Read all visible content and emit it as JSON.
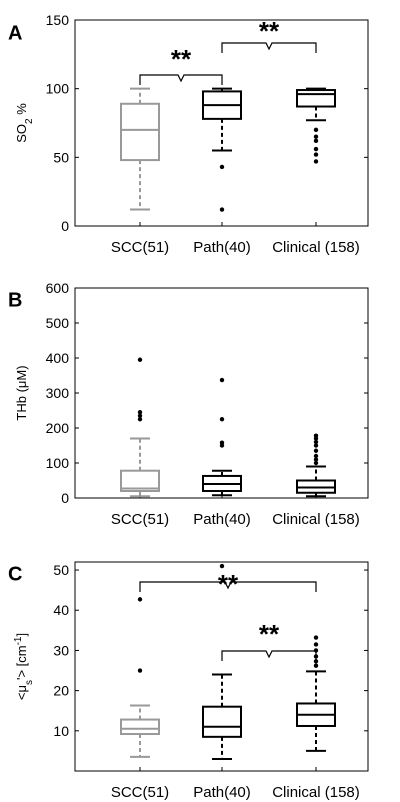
{
  "chart_data": [
    {
      "type": "box",
      "panel": "A",
      "ylabel_parts": [
        "SO",
        "2",
        " %"
      ],
      "ylim": [
        0,
        150
      ],
      "yticks": [
        0,
        50,
        100,
        150
      ],
      "categories": [
        "SCC(51)",
        "Path(40)",
        "Clinical (158)"
      ],
      "boxes": [
        {
          "category": "SCC(51)",
          "min": 12,
          "q1": 48,
          "median": 70,
          "q3": 89,
          "max": 100,
          "outliers": [],
          "color": "#999999"
        },
        {
          "category": "Path(40)",
          "min": 55,
          "q1": 78,
          "median": 88,
          "q3": 98,
          "max": 100,
          "outliers": [
            43,
            12
          ],
          "color": "#000000"
        },
        {
          "category": "Clinical (158)",
          "min": 77,
          "q1": 87,
          "median": 96,
          "q3": 99,
          "max": 100,
          "outliers": [
            70,
            65,
            62,
            56,
            52,
            47
          ],
          "color": "#000000"
        }
      ],
      "significance": [
        {
          "from": 1,
          "to": 2,
          "label": "**"
        },
        {
          "from": 2,
          "to": 3,
          "label": "**"
        },
        {
          "from": 1,
          "to": 3,
          "label": "**"
        }
      ]
    },
    {
      "type": "box",
      "panel": "B",
      "ylabel_parts": [
        "THb (",
        "μ",
        "M)"
      ],
      "ylim": [
        0,
        600
      ],
      "yticks": [
        0,
        100,
        200,
        300,
        400,
        500,
        600
      ],
      "categories": [
        "SCC(51)",
        "Path(40)",
        "Clinical (158)"
      ],
      "boxes": [
        {
          "category": "SCC(51)",
          "min": 5,
          "q1": 20,
          "median": 27,
          "q3": 78,
          "max": 170,
          "outliers": [
            395,
            245,
            235,
            225
          ],
          "color": "#999999"
        },
        {
          "category": "Path(40)",
          "min": 8,
          "q1": 20,
          "median": 40,
          "q3": 63,
          "max": 78,
          "outliers": [
            337,
            225,
            158,
            150
          ],
          "color": "#000000"
        },
        {
          "category": "Clinical (158)",
          "min": 5,
          "q1": 15,
          "median": 30,
          "q3": 50,
          "max": 90,
          "outliers": [
            178,
            170,
            160,
            150,
            135,
            120,
            110,
            100
          ],
          "color": "#000000"
        }
      ],
      "significance": []
    },
    {
      "type": "box",
      "panel": "C",
      "ylabel_parts": [
        "<μ",
        "s",
        "'> [cm",
        "-1",
        "]"
      ],
      "ylim": [
        0,
        52
      ],
      "yticks": [
        10,
        20,
        30,
        40,
        50
      ],
      "categories": [
        "SCC(51)",
        "Path(40)",
        "Clinical (158)"
      ],
      "boxes": [
        {
          "category": "SCC(51)",
          "min": 3.5,
          "q1": 9.2,
          "median": 10.5,
          "q3": 12.8,
          "max": 16.3,
          "outliers": [
            42.7,
            25
          ],
          "color": "#999999"
        },
        {
          "category": "Path(40)",
          "min": 3,
          "q1": 8.5,
          "median": 11,
          "q3": 16,
          "max": 24,
          "outliers": [
            51
          ],
          "color": "#000000"
        },
        {
          "category": "Clinical (158)",
          "min": 5,
          "q1": 11.2,
          "median": 14,
          "q3": 16.8,
          "max": 24.8,
          "outliers": [
            33.2,
            31.5,
            30,
            28.5,
            27.3,
            26.2
          ],
          "color": "#000000"
        }
      ],
      "significance": [
        {
          "from": 2,
          "to": 3,
          "label": "**"
        },
        {
          "from": 1,
          "to": 3,
          "label": "**"
        }
      ]
    }
  ]
}
